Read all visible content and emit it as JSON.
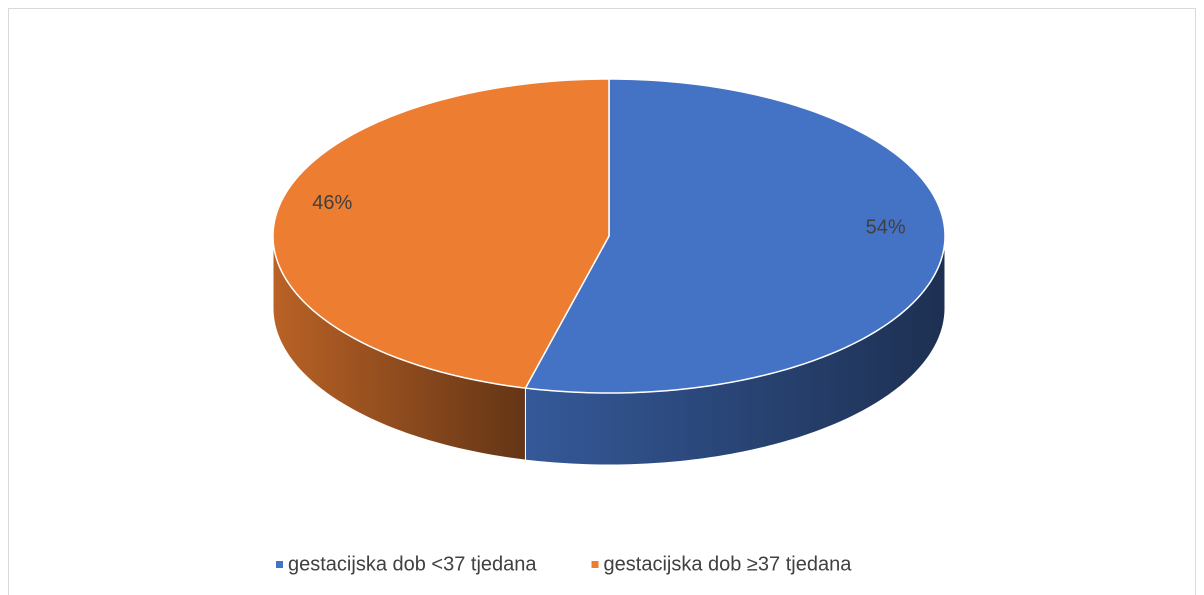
{
  "chart_data": {
    "type": "pie",
    "categories": [
      "gestacijska dob <37 tjedana",
      "gestacijska dob ≥37 tjedana"
    ],
    "values": [
      54,
      46
    ],
    "value_labels": [
      "54%",
      "46%"
    ],
    "colors": [
      "#4472c4",
      "#ed7d31"
    ],
    "legend": "bottom"
  }
}
